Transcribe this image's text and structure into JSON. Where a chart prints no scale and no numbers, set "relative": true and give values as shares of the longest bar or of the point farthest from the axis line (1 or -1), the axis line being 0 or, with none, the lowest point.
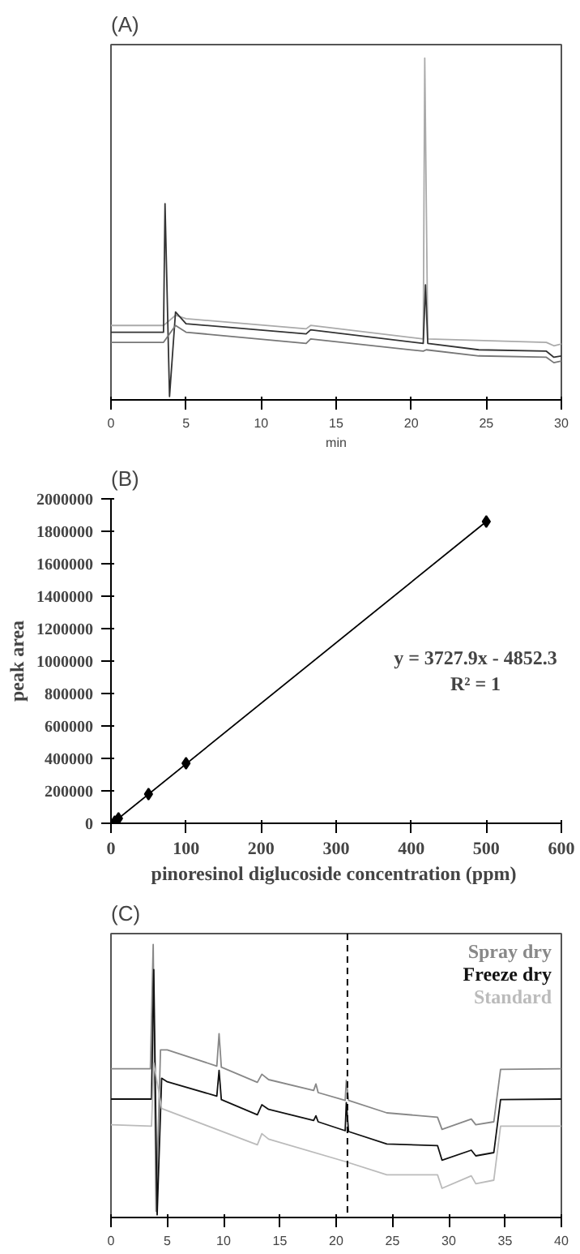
{
  "chart_data": [
    {
      "type": "line",
      "title": "(A)",
      "xlabel": "min",
      "relative": true,
      "xlim": [
        0,
        30
      ],
      "xticks": [
        0,
        5,
        10,
        15,
        20,
        25,
        30
      ],
      "tick_labels": "x",
      "grid": false,
      "legend": false,
      "series": [
        {
          "color": "#aaaaaa",
          "x": [
            0,
            3.5,
            4.3,
            5,
            13,
            13.3,
            20.8,
            20.9,
            21.1,
            29,
            29.5,
            30
          ],
          "values": [
            0.21,
            0.21,
            0.24,
            0.23,
            0.2,
            0.21,
            0.17,
            1.0,
            0.17,
            0.16,
            0.15,
            0.155
          ]
        },
        {
          "color": "#333333",
          "x": [
            0,
            3.5,
            3.6,
            3.9,
            4.3,
            5,
            13,
            13.3,
            20.8,
            20.95,
            21.1,
            24.5,
            29,
            29.5,
            30
          ],
          "values": [
            0.19,
            0.19,
            0.57,
            0.0,
            0.25,
            0.215,
            0.185,
            0.197,
            0.157,
            0.33,
            0.157,
            0.138,
            0.134,
            0.116,
            0.12
          ]
        },
        {
          "color": "#777777",
          "x": [
            0,
            3.5,
            4.3,
            5,
            13,
            13.3,
            20.8,
            21,
            24.5,
            29,
            29.5,
            30
          ],
          "values": [
            0.16,
            0.16,
            0.21,
            0.19,
            0.157,
            0.17,
            0.134,
            0.138,
            0.12,
            0.116,
            0.1,
            0.105
          ]
        }
      ]
    },
    {
      "type": "scatter",
      "title": "(B)",
      "xlabel": "pinoresinol diglucoside concentration  (ppm)",
      "ylabel": "peak area",
      "xlim": [
        0,
        600
      ],
      "xticks": [
        0,
        100,
        200,
        300,
        400,
        500,
        600
      ],
      "ylim": [
        0,
        2000000
      ],
      "yticks": [
        0,
        200000,
        400000,
        600000,
        800000,
        1000000,
        1200000,
        1400000,
        1600000,
        1800000,
        2000000
      ],
      "grid": false,
      "legend": false,
      "annotations": [
        "y = 3727.9x - 4852.3",
        "R² = 1"
      ],
      "series": [
        {
          "type": "line",
          "color": "#000000",
          "x": [
            2,
            500
          ],
          "values": [
            0,
            1860000
          ]
        },
        {
          "type": "scatter",
          "marker": "diamond",
          "color": "#000000",
          "x": [
            5,
            10,
            50,
            100,
            500
          ],
          "values": [
            10000,
            30000,
            180000,
            370000,
            1860000
          ]
        }
      ]
    },
    {
      "type": "line",
      "title": "(C)",
      "relative": true,
      "xlim": [
        0,
        40
      ],
      "xticks": [
        0,
        5,
        10,
        15,
        20,
        25,
        30,
        35,
        40
      ],
      "tick_labels": "x",
      "grid": false,
      "legend": "top right",
      "ref_lines": [
        {
          "axis": "x",
          "value": 21,
          "color": "#000000",
          "line_style": "dashed"
        }
      ],
      "series": [
        {
          "name": "Spray dry",
          "color": "#888888",
          "x": [
            0,
            3.5,
            3.75,
            4.0,
            4.4,
            5,
            9.4,
            9.6,
            9.8,
            13,
            13.4,
            14,
            18,
            18.2,
            18.4,
            20.8,
            20.9,
            21.1,
            24.5,
            29,
            29.4,
            32,
            32.4,
            34,
            34.6,
            40
          ],
          "values": [
            0.54,
            0.54,
            1.0,
            0.013,
            0.61,
            0.61,
            0.55,
            0.67,
            0.546,
            0.49,
            0.52,
            0.5,
            0.46,
            0.484,
            0.452,
            0.423,
            0.497,
            0.423,
            0.377,
            0.361,
            0.316,
            0.354,
            0.333,
            0.344,
            0.538,
            0.54
          ]
        },
        {
          "name": "Freeze dry",
          "color": "#111111",
          "x": [
            0,
            3.6,
            3.8,
            4.1,
            4.5,
            5,
            9.4,
            9.6,
            9.8,
            13,
            13.4,
            14,
            18,
            18.2,
            18.4,
            20.8,
            20.9,
            21.1,
            24.5,
            29,
            29.4,
            32,
            32.4,
            34,
            34.6,
            40
          ],
          "values": [
            0.428,
            0.428,
            0.907,
            0.0,
            0.505,
            0.492,
            0.439,
            0.534,
            0.426,
            0.37,
            0.407,
            0.39,
            0.349,
            0.366,
            0.344,
            0.311,
            0.415,
            0.308,
            0.262,
            0.256,
            0.202,
            0.239,
            0.218,
            0.23,
            0.426,
            0.428
          ]
        },
        {
          "name": "Standard",
          "color": "#bbbbbb",
          "x": [
            0,
            3.6,
            3.8,
            4.5,
            13,
            13.4,
            14,
            20.8,
            24.5,
            29,
            29.4,
            32,
            32.4,
            34,
            34.6,
            40
          ],
          "values": [
            0.333,
            0.328,
            0.562,
            0.393,
            0.259,
            0.3,
            0.28,
            0.197,
            0.148,
            0.148,
            0.098,
            0.144,
            0.115,
            0.128,
            0.328,
            0.328
          ]
        }
      ]
    }
  ]
}
